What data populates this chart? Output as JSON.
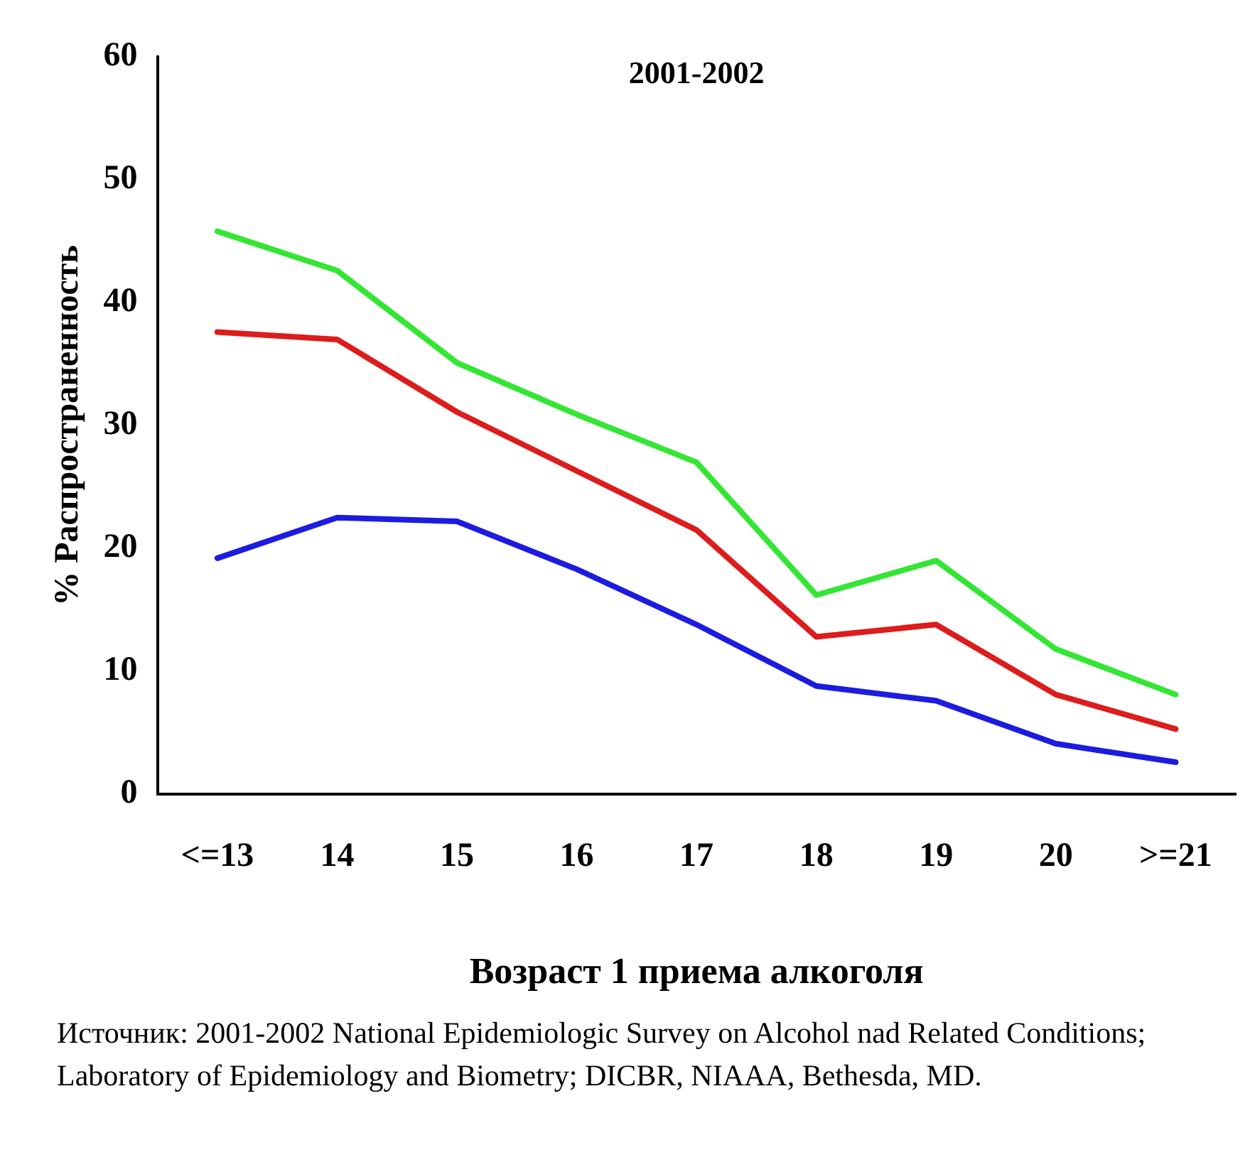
{
  "chart_data": {
    "type": "line",
    "title": "2001-2002",
    "xlabel": "Возраст 1 приема алкоголя",
    "ylabel": "% Распространенность",
    "categories": [
      "<=13",
      "14",
      "15",
      "16",
      "17",
      "18",
      "19",
      "20",
      ">=21"
    ],
    "series": [
      {
        "color": "#33e633",
        "values": [
          45.8,
          42.6,
          35.1,
          30.9,
          27.0,
          16.2,
          19.0,
          11.8,
          8.1
        ]
      },
      {
        "color": "#dd1c1c",
        "values": [
          37.6,
          37.0,
          31.1,
          26.3,
          21.5,
          12.8,
          13.8,
          8.1,
          5.3
        ]
      },
      {
        "color": "#1c1ce0",
        "values": [
          19.2,
          22.5,
          22.2,
          18.3,
          13.8,
          8.8,
          7.6,
          4.1,
          2.6
        ]
      }
    ],
    "ylim": [
      0,
      60
    ],
    "yticks": [
      0,
      10,
      20,
      30,
      40,
      50,
      60
    ],
    "grid": false,
    "legend": false,
    "marker": "none",
    "line_style": "solid",
    "annotations": [
      "Источник:  2001-2002 National Epidemiologic Survey on Alcohol nad Related Conditions; Laboratory of Epidemiology and Biometry; DICBR, NIAAA, Bethesda, MD."
    ]
  }
}
